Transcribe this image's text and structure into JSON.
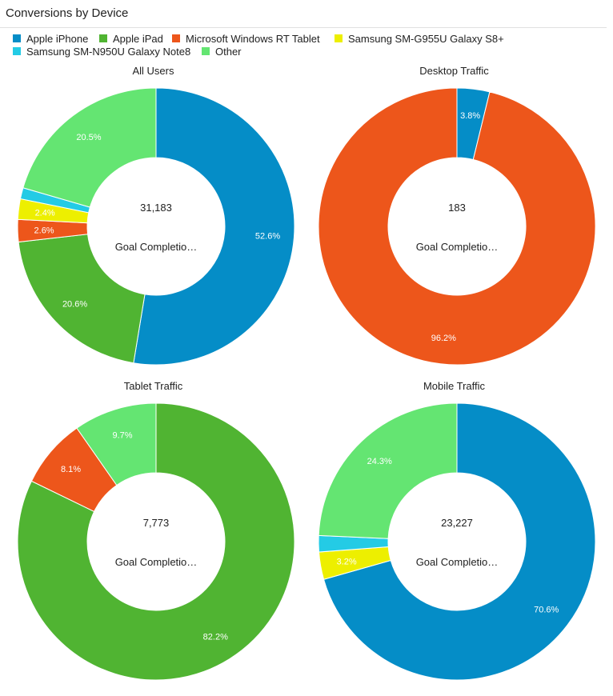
{
  "title": "Conversions by Device",
  "legend": [
    {
      "label": "Apple iPhone",
      "color": "#058dc7"
    },
    {
      "label": "Apple iPad",
      "color": "#50b432"
    },
    {
      "label": "Microsoft Windows RT Tablet",
      "color": "#ed561b"
    },
    {
      "label": "Samsung SM-G955U Galaxy S8+",
      "color": "#edef00"
    },
    {
      "label": "Samsung SM-N950U Galaxy Note8",
      "color": "#24cbe5"
    },
    {
      "label": "Other",
      "color": "#64e572"
    }
  ],
  "chart_data": [
    {
      "type": "pie",
      "title": "All Users",
      "center_value": "31,183",
      "center_label": "Goal Completio…",
      "categories": [
        "Apple iPhone",
        "Apple iPad",
        "Microsoft Windows RT Tablet",
        "Samsung SM-G955U Galaxy S8+",
        "Samsung SM-N950U Galaxy Note8",
        "Other"
      ],
      "values": [
        52.6,
        20.6,
        2.6,
        2.4,
        1.3,
        20.5
      ],
      "labels": [
        "52.6%",
        "20.6%",
        "2.6%",
        "2.4%",
        "",
        "20.5%"
      ]
    },
    {
      "type": "pie",
      "title": "Desktop Traffic",
      "center_value": "183",
      "center_label": "Goal Completio…",
      "categories": [
        "Apple iPhone",
        "Apple iPad",
        "Microsoft Windows RT Tablet",
        "Samsung SM-G955U Galaxy S8+",
        "Samsung SM-N950U Galaxy Note8",
        "Other"
      ],
      "values": [
        3.8,
        0,
        96.2,
        0,
        0,
        0
      ],
      "labels": [
        "3.8%",
        "",
        "96.2%",
        "",
        "",
        ""
      ]
    },
    {
      "type": "pie",
      "title": "Tablet Traffic",
      "center_value": "7,773",
      "center_label": "Goal Completio…",
      "categories": [
        "Apple iPhone",
        "Apple iPad",
        "Microsoft Windows RT Tablet",
        "Samsung SM-G955U Galaxy S8+",
        "Samsung SM-N950U Galaxy Note8",
        "Other"
      ],
      "values": [
        0,
        82.2,
        8.1,
        0,
        0,
        9.7
      ],
      "labels": [
        "",
        "82.2%",
        "8.1%",
        "",
        "",
        "9.7%"
      ]
    },
    {
      "type": "pie",
      "title": "Mobile Traffic",
      "center_value": "23,227",
      "center_label": "Goal Completio…",
      "categories": [
        "Apple iPhone",
        "Apple iPad",
        "Microsoft Windows RT Tablet",
        "Samsung SM-G955U Galaxy S8+",
        "Samsung SM-N950U Galaxy Note8",
        "Other"
      ],
      "values": [
        70.6,
        0,
        0,
        3.2,
        1.9,
        24.3
      ],
      "labels": [
        "70.6%",
        "",
        "",
        "3.2%",
        "",
        "24.3%"
      ]
    }
  ]
}
